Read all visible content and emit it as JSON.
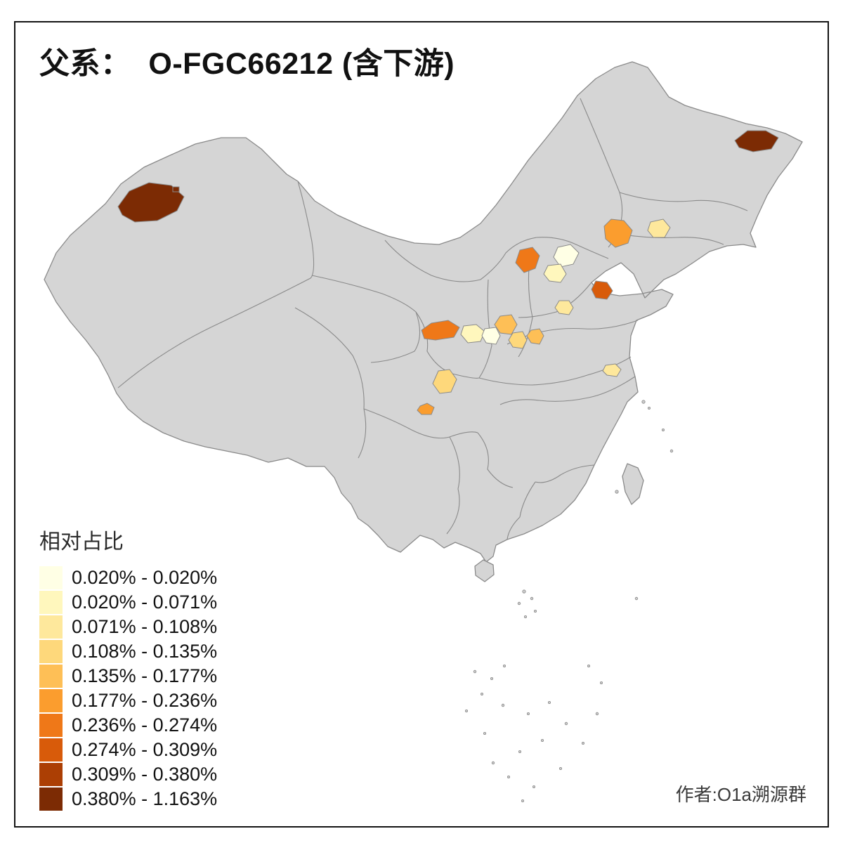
{
  "title": "父系：  O-FGC66212 (含下游)",
  "credit": "作者:O1a溯源群",
  "legend": {
    "title": "相对占比",
    "items": [
      {
        "label": "0.020% - 0.020%",
        "color": "#FFFFE5"
      },
      {
        "label": "0.020% - 0.071%",
        "color": "#FFF7BD"
      },
      {
        "label": "0.071% - 0.108%",
        "color": "#FEE89C"
      },
      {
        "label": "0.108% - 0.135%",
        "color": "#FED87B"
      },
      {
        "label": "0.135% - 0.177%",
        "color": "#FEBF56"
      },
      {
        "label": "0.177% - 0.236%",
        "color": "#FB9D2E"
      },
      {
        "label": "0.236% - 0.274%",
        "color": "#EF7818"
      },
      {
        "label": "0.274% - 0.309%",
        "color": "#D85B0A"
      },
      {
        "label": "0.309% - 0.380%",
        "color": "#AC3F04"
      },
      {
        "label": "0.380% - 1.163%",
        "color": "#7C2B04"
      }
    ]
  },
  "map": {
    "base_fill": "#D5D5D5",
    "border_color": "#8A8A8A",
    "island_fill": "#CCCCCC",
    "regions": [
      {
        "id": "xinjiang-west",
        "class": 9
      },
      {
        "id": "xinjiang-west-dot",
        "class": 9
      },
      {
        "id": "heilongjiang-east",
        "class": 9
      },
      {
        "id": "liaoning-west",
        "class": 5
      },
      {
        "id": "liaoning-central",
        "class": 2
      },
      {
        "id": "hebei-northwest",
        "class": 6
      },
      {
        "id": "beijing-area",
        "class": 0
      },
      {
        "id": "hebei-central",
        "class": 1
      },
      {
        "id": "shandong-north",
        "class": 7
      },
      {
        "id": "hebei-south",
        "class": 2
      },
      {
        "id": "shanxi-central",
        "class": 4
      },
      {
        "id": "shanxi-south",
        "class": 3
      },
      {
        "id": "henan-north",
        "class": 4
      },
      {
        "id": "shaanxi-west",
        "class": 6
      },
      {
        "id": "shaanxi-central-pale",
        "class": 1
      },
      {
        "id": "shaanxi-east-pale",
        "class": 0
      },
      {
        "id": "sichuan-north",
        "class": 3
      },
      {
        "id": "chongqing-small",
        "class": 5
      },
      {
        "id": "jiangsu-north",
        "class": 2
      }
    ]
  }
}
